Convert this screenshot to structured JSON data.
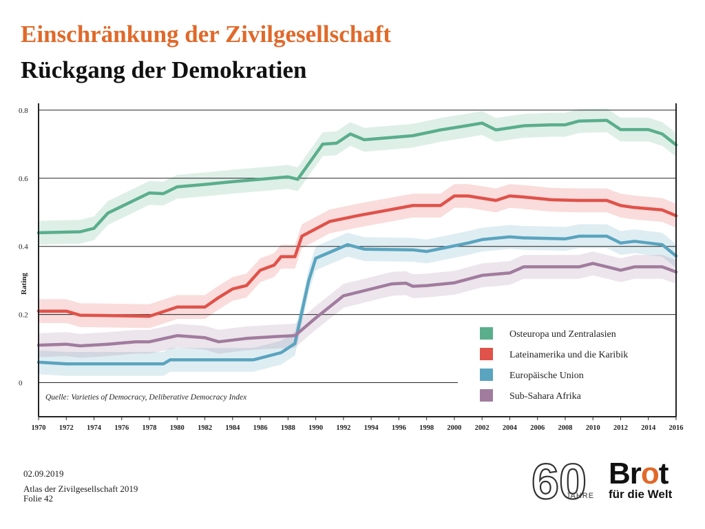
{
  "header": {
    "title": "Einschränkung der Zivilgesellschaft",
    "subtitle": "Rückgang der Demokratien"
  },
  "footer": {
    "date": "02.09.2019",
    "publication": "Atlas der Zivilgesellschaft 2019",
    "slide": "Folie 42"
  },
  "logos": {
    "anniversary_number": "60",
    "anniversary_word": "JAHRE",
    "brand_main_1": "Br",
    "brand_main_2": "o",
    "brand_main_3": "t",
    "brand_sub": "für die Welt"
  },
  "colors": {
    "title_accent": "#e0692a",
    "osteuropa": "#5aae8c",
    "lateinamerika": "#e0524a",
    "eu": "#5aa4bf",
    "afrika": "#a17c9e"
  },
  "chart_data": {
    "type": "line",
    "ylabel": "Rating",
    "ylim": [
      -0.1,
      0.82
    ],
    "yticks": [
      "0",
      "0.2",
      "0.4",
      "0.6",
      "0.8"
    ],
    "xticks": [
      "1970",
      "1972",
      "1974",
      "1976",
      "1978",
      "1980",
      "1982",
      "1984",
      "1986",
      "1988",
      "1990",
      "1992",
      "1994",
      "1996",
      "1998",
      "2000",
      "2002",
      "2004",
      "2006",
      "2008",
      "2010",
      "2012",
      "2014",
      "2016"
    ],
    "source": "Quelle: Varieties of Democracy, Deliberative Democracy Index",
    "legend_position": "bottom-right",
    "grid": "horizontal",
    "series": [
      {
        "name": "Osteuropa und Zentralasien",
        "color": "#5aae8c",
        "x": [
          1970,
          1973,
          1974,
          1975,
          1978,
          1979,
          1980,
          1982,
          1984,
          1986,
          1988,
          1988.7,
          1990.5,
          1991.5,
          1992.5,
          1993.5,
          1995,
          1997,
          1999,
          2001,
          2002,
          2003,
          2005,
          2007,
          2008,
          2009,
          2011,
          2012,
          2014,
          2015,
          2016
        ],
        "y": [
          0.44,
          0.443,
          0.453,
          0.498,
          0.557,
          0.555,
          0.575,
          0.582,
          0.59,
          0.597,
          0.604,
          0.597,
          0.7,
          0.703,
          0.73,
          0.713,
          0.718,
          0.725,
          0.742,
          0.755,
          0.762,
          0.742,
          0.754,
          0.757,
          0.757,
          0.768,
          0.77,
          0.743,
          0.743,
          0.73,
          0.698
        ]
      },
      {
        "name": "Lateinamerika und die Karibik",
        "color": "#e0524a",
        "x": [
          1970,
          1972,
          1973,
          1975,
          1978,
          1980,
          1982,
          1983,
          1984,
          1985,
          1986,
          1987,
          1987.5,
          1988.5,
          1989,
          1991,
          1993,
          1995,
          1997,
          1999,
          2000,
          2001,
          2003,
          2004,
          2005,
          2007,
          2009,
          2011,
          2012,
          2013,
          2015,
          2016
        ],
        "y": [
          0.21,
          0.21,
          0.198,
          0.197,
          0.195,
          0.222,
          0.222,
          0.25,
          0.275,
          0.285,
          0.33,
          0.345,
          0.37,
          0.37,
          0.43,
          0.473,
          0.49,
          0.505,
          0.52,
          0.52,
          0.548,
          0.548,
          0.535,
          0.548,
          0.545,
          0.537,
          0.535,
          0.535,
          0.52,
          0.514,
          0.507,
          0.49
        ]
      },
      {
        "name": "Europäische Union",
        "color": "#5aa4bf",
        "x": [
          1970,
          1972,
          1976,
          1979,
          1979.5,
          1985.5,
          1987.5,
          1988.5,
          1989.5,
          1990,
          1992.3,
          1993.5,
          1997,
          1998,
          2001,
          2002,
          2004,
          2005,
          2008,
          2009,
          2011,
          2012,
          2013,
          2015,
          2016
        ],
        "y": [
          0.06,
          0.055,
          0.055,
          0.055,
          0.067,
          0.067,
          0.088,
          0.115,
          0.3,
          0.365,
          0.405,
          0.392,
          0.39,
          0.385,
          0.41,
          0.42,
          0.428,
          0.425,
          0.422,
          0.43,
          0.43,
          0.41,
          0.415,
          0.405,
          0.372
        ]
      },
      {
        "name": "Sub-Sahara Afrika",
        "color": "#a17c9e",
        "x": [
          1970,
          1972,
          1973,
          1975,
          1977,
          1978,
          1980,
          1982,
          1983,
          1985,
          1987,
          1988.5,
          1990,
          1992,
          1993.5,
          1995.5,
          1996.5,
          1997,
          1998,
          2000,
          2002,
          2004,
          2005,
          2007,
          2009,
          2010,
          2012,
          2013,
          2015,
          2016
        ],
        "y": [
          0.11,
          0.113,
          0.108,
          0.113,
          0.12,
          0.12,
          0.138,
          0.132,
          0.12,
          0.13,
          0.135,
          0.138,
          0.19,
          0.255,
          0.27,
          0.29,
          0.292,
          0.283,
          0.285,
          0.293,
          0.315,
          0.322,
          0.34,
          0.34,
          0.34,
          0.35,
          0.33,
          0.34,
          0.34,
          0.325
        ]
      }
    ]
  }
}
